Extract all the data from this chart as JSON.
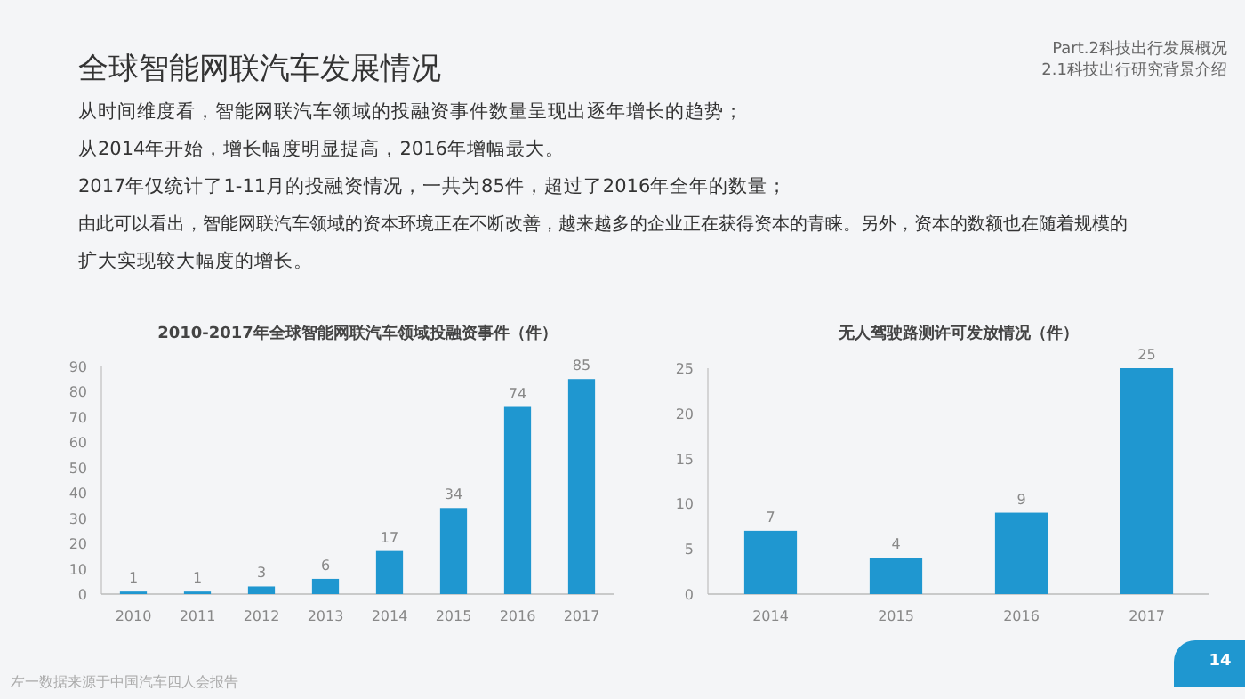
{
  "chart_data": [
    {
      "type": "bar",
      "title": "2010-2017年全球智能网联汽车领域投融资事件（件）",
      "annotations": [
        "全球智能网联汽车发展情况",
        "Part.2科技出行发展概况",
        "2.1科技出行研究背景介绍",
        "从时间维度看，智能网联汽车领域的投融资事件数量呈现出逐年增长的趋势；",
        "从2014年开始，增长幅度明显提高，2016年增幅最大。",
        "2017年仅统计了1-11月的投融资情况，一共为85件，超过了2016年全年的数量；",
        "由此可以看出，智能网联汽车领域的资本环境正在不断改善，越来越多的企业正在获得资本的青睐。另外，资本的数额也在随着规模的",
        "扩大实现较大幅度的增长。",
        "左一数据来源于中国汽车四人会报告",
        "14"
      ],
      "categories": [
        "2010",
        "2011",
        "2012",
        "2013",
        "2014",
        "2015",
        "2016",
        "2017"
      ],
      "values": [
        1,
        1,
        3,
        6,
        17,
        34,
        74,
        85
      ],
      "color": "#1f97d0",
      "ylim": [
        0,
        90
      ],
      "yticks": [
        0,
        10,
        20,
        30,
        40,
        50,
        60,
        70,
        80,
        90
      ],
      "data_labels": true,
      "grid": false
    },
    {
      "type": "bar",
      "title": "无人驾驶路测许可发放情况（件）",
      "categories": [
        "2014",
        "2015",
        "2016",
        "2017"
      ],
      "values": [
        7,
        4,
        9,
        25
      ],
      "color": "#1f97d0",
      "ylim": [
        0,
        25
      ],
      "yticks": [
        0,
        5,
        10,
        15,
        20,
        25
      ],
      "data_labels": true,
      "grid": false
    }
  ]
}
